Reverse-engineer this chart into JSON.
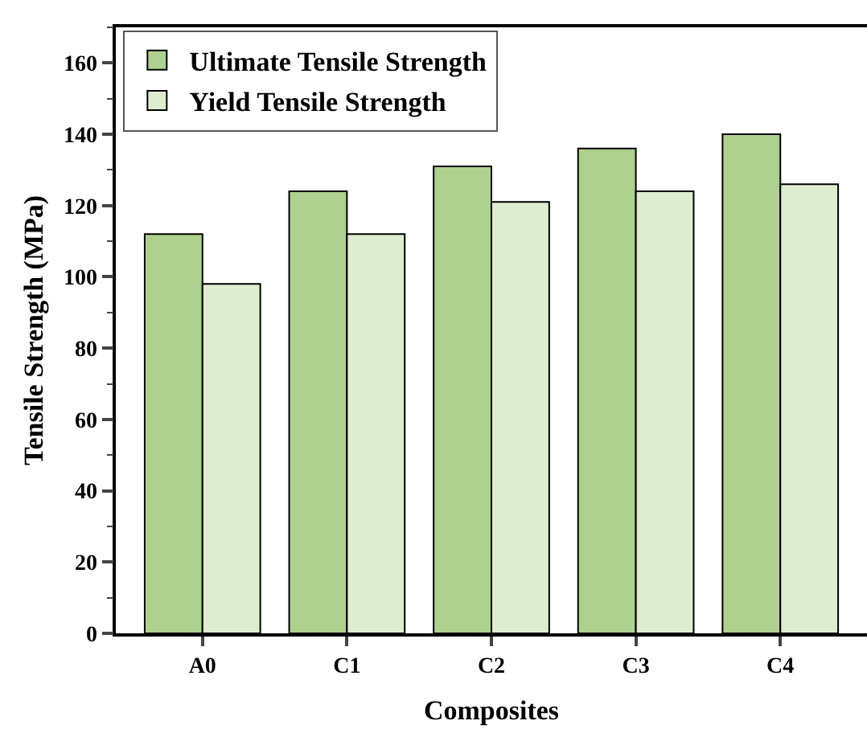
{
  "chart_data": {
    "type": "bar",
    "xlabel": "Composites",
    "ylabel": "Tensile Strength (MPa)",
    "categories": [
      "A0",
      "C1",
      "C2",
      "C3",
      "C4"
    ],
    "series": [
      {
        "name": "Ultimate Tensile Strength",
        "color": "#aed18f",
        "values": [
          112,
          124,
          131,
          136,
          140
        ]
      },
      {
        "name": "Yield Tensile Strength",
        "color": "#deedd0",
        "values": [
          98,
          112,
          121,
          124,
          126
        ]
      }
    ],
    "ylim": [
      0,
      170
    ],
    "yticks": [
      0,
      {
        "value": 10,
        "label": null
      },
      20,
      {
        "value": 30,
        "label": null
      },
      40,
      {
        "value": 50,
        "label": null
      },
      60,
      {
        "value": 70,
        "label": null
      },
      80,
      {
        "value": 90,
        "label": null
      },
      100,
      {
        "value": 110,
        "label": null
      },
      120,
      {
        "value": 130,
        "label": null
      },
      140,
      {
        "value": 150,
        "label": null
      },
      160,
      {
        "value": 170,
        "label": null
      }
    ],
    "grid": false,
    "legend": "top left"
  }
}
